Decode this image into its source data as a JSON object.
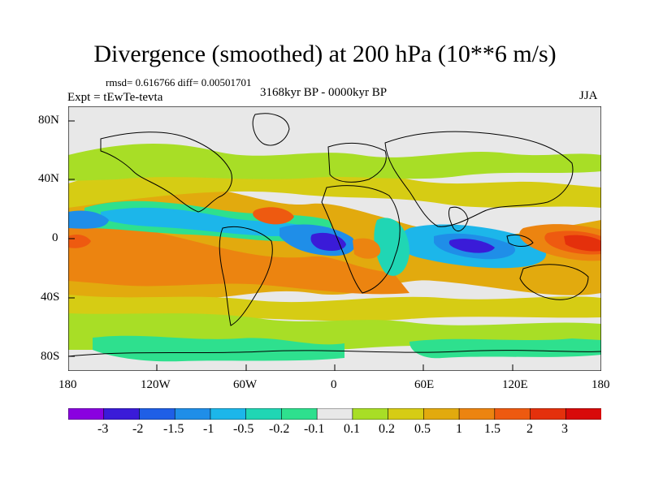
{
  "header": {
    "title": "Divergence (smoothed) at 200 hPa (10**6 m/s)",
    "stats": "rmsd= 0.616766 diff= 0.00501701",
    "experiment": "Expt = tEwTe-tevta",
    "period": "3168kyr BP - 0000kyr BP",
    "season": "JJA"
  },
  "map": {
    "lat_labels": [
      "80N",
      "40N",
      "0",
      "40S",
      "80S"
    ],
    "lon_labels": [
      "180",
      "120W",
      "60W",
      "0",
      "60E",
      "120E",
      "180"
    ]
  },
  "colorbar": {
    "labels": [
      "-3",
      "-2",
      "-1.5",
      "-1",
      "-0.5",
      "-0.2",
      "-0.1",
      "0.1",
      "0.2",
      "0.5",
      "1",
      "1.5",
      "2",
      "3"
    ],
    "colors": [
      "#8a00e0",
      "#3a1bd8",
      "#1f5fe6",
      "#1f8ee8",
      "#1cb6ea",
      "#20d6b4",
      "#2ee08e",
      "#e8e8e8",
      "#a8de26",
      "#d6cc14",
      "#e2aa0e",
      "#ec8410",
      "#ee5a10",
      "#e4300c",
      "#d80a0a"
    ]
  }
}
